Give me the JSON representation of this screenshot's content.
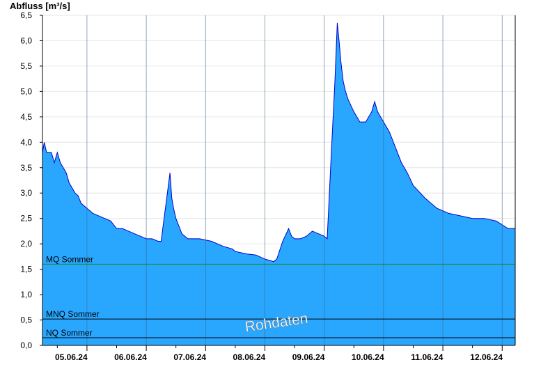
{
  "chart_data": {
    "type": "area",
    "title": "Abfluss [m³/s]",
    "ylim": [
      0,
      6.5
    ],
    "yticks": [
      "0,0",
      "0,5",
      "1,0",
      "1,5",
      "2,0",
      "2,5",
      "3,0",
      "3,5",
      "4,0",
      "4,5",
      "5,0",
      "5,5",
      "6,0",
      "6,5"
    ],
    "xticks": [
      "05.06.24",
      "06.06.24",
      "07.06.24",
      "08.06.24",
      "09.06.24",
      "10.06.24",
      "11.06.24",
      "12.06.24"
    ],
    "xrange_days": [
      4.75,
      12.72
    ],
    "grid": true,
    "colors": {
      "fill": "#29a7ff",
      "line": "#0000cc",
      "mq": "#1a8a1a",
      "ref": "#000000"
    },
    "reference_lines": [
      {
        "label": "MQ Sommer",
        "value": 1.6
      },
      {
        "label": "MNQ Sommer",
        "value": 0.52
      },
      {
        "label": "NQ Sommer",
        "value": 0.15
      }
    ],
    "watermark": "Rohdaten",
    "series": [
      {
        "x": [
          4.75,
          4.78,
          4.82,
          4.9,
          4.95,
          5.0,
          5.05,
          5.1,
          5.15,
          5.2,
          5.25,
          5.3,
          5.35,
          5.4,
          5.5,
          5.6,
          5.7,
          5.8,
          5.9,
          6.0,
          6.1,
          6.2,
          6.3,
          6.4,
          6.5,
          6.6,
          6.7,
          6.75,
          6.9,
          6.93,
          6.96,
          7.0,
          7.05,
          7.1,
          7.2,
          7.4,
          7.6,
          7.8,
          7.95,
          8.0,
          8.2,
          8.35,
          8.5,
          8.65,
          8.7,
          8.8,
          8.9,
          8.95,
          9.0,
          9.1,
          9.2,
          9.3,
          9.4,
          9.5,
          9.55,
          9.62,
          9.68,
          9.72,
          9.75,
          9.78,
          9.82,
          9.86,
          9.9,
          10.0,
          10.1,
          10.2,
          10.3,
          10.35,
          10.4,
          10.5,
          10.6,
          10.7,
          10.8,
          10.9,
          11.0,
          11.2,
          11.4,
          11.6,
          11.8,
          12.0,
          12.2,
          12.4,
          12.6,
          12.72
        ],
        "y": [
          3.8,
          4.0,
          3.8,
          3.8,
          3.6,
          3.8,
          3.6,
          3.5,
          3.4,
          3.2,
          3.1,
          3.0,
          2.95,
          2.8,
          2.7,
          2.6,
          2.55,
          2.5,
          2.45,
          2.3,
          2.3,
          2.25,
          2.2,
          2.15,
          2.1,
          2.1,
          2.05,
          2.05,
          3.4,
          2.9,
          2.7,
          2.5,
          2.35,
          2.2,
          2.1,
          2.1,
          2.05,
          1.95,
          1.9,
          1.85,
          1.8,
          1.78,
          1.7,
          1.65,
          1.7,
          2.05,
          2.3,
          2.15,
          2.1,
          2.1,
          2.15,
          2.25,
          2.2,
          2.15,
          2.1,
          3.8,
          5.2,
          6.35,
          6.0,
          5.6,
          5.2,
          5.0,
          4.85,
          4.6,
          4.4,
          4.4,
          4.6,
          4.8,
          4.6,
          4.4,
          4.2,
          3.9,
          3.6,
          3.4,
          3.15,
          2.9,
          2.7,
          2.6,
          2.55,
          2.5,
          2.5,
          2.45,
          2.3,
          2.3
        ]
      }
    ]
  }
}
